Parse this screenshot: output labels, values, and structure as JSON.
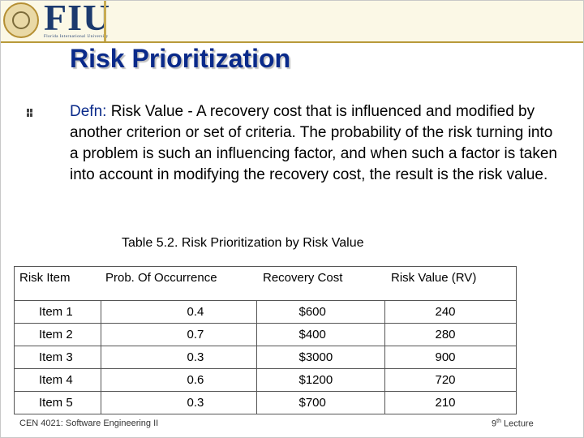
{
  "header": {
    "logo_text": "FIU",
    "logo_subtitle": "Florida International University"
  },
  "slide": {
    "title": "Risk Prioritization",
    "definition_term": "Defn:",
    "definition_text": " Risk Value -  A recovery cost that is influenced and modified by another criterion or set of criteria.  The probability of the risk turning into a problem is such an influencing factor, and when such a factor is taken into account in modifying the recovery cost, the result is the risk value.",
    "table_caption": "Table 5.2. Risk Prioritization by Risk Value"
  },
  "table": {
    "headers": [
      "Risk Item",
      "Prob. Of Occurrence",
      "Recovery Cost",
      "Risk Value (RV)"
    ],
    "rows": [
      [
        "Item 1",
        "0.4",
        "$600",
        "240"
      ],
      [
        "Item 2",
        "0.7",
        "$400",
        "280"
      ],
      [
        "Item 3",
        "0.3",
        "$3000",
        "900"
      ],
      [
        "Item 4",
        "0.6",
        "$1200",
        "720"
      ],
      [
        "Item 5",
        "0.3",
        "$700",
        "210"
      ]
    ]
  },
  "footer": {
    "course": "CEN 4021: Software Engineering II",
    "lecture_num": "9",
    "lecture_sup": "th",
    "lecture_label": " Lecture"
  }
}
